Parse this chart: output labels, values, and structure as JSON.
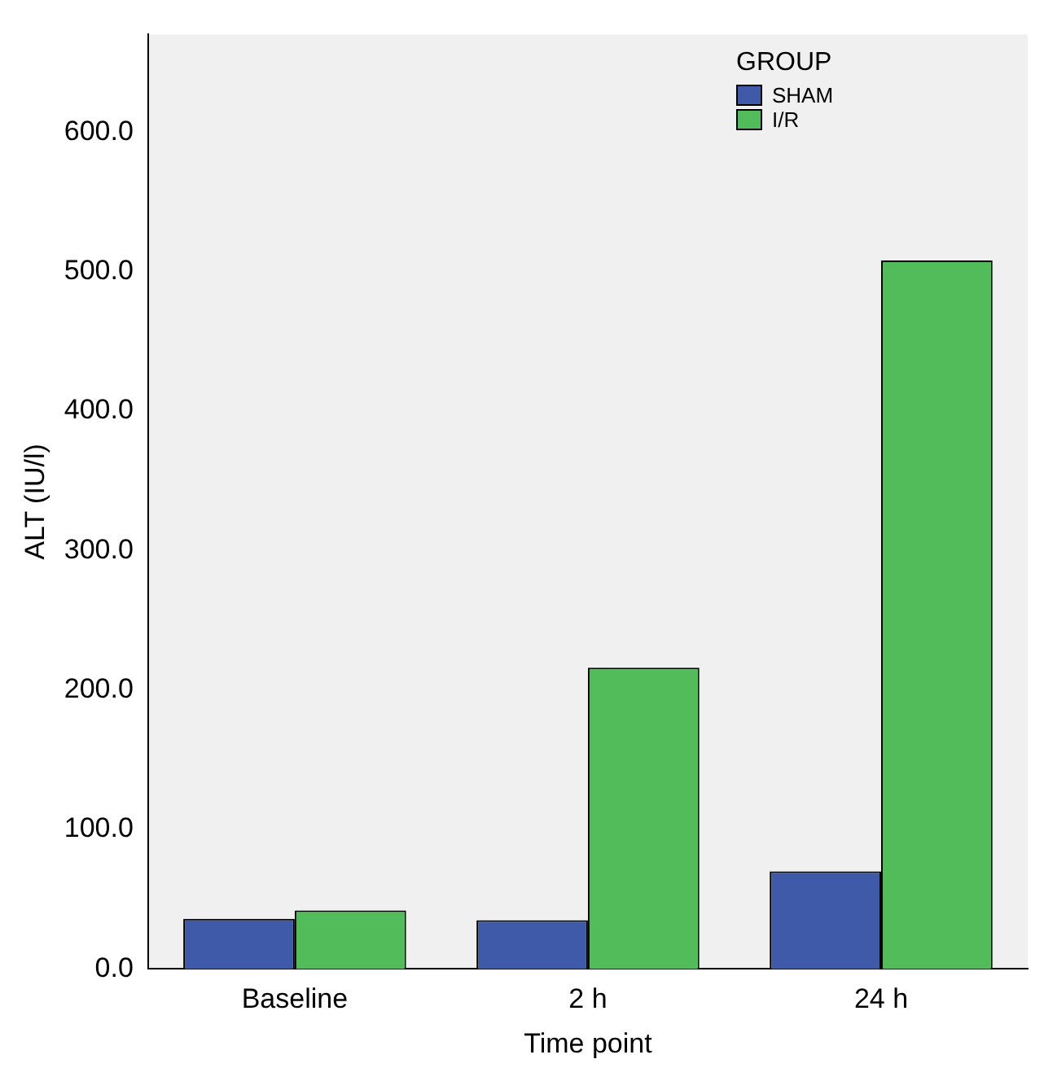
{
  "chart_data": {
    "type": "bar",
    "xlabel": "Time point",
    "ylabel": "ALT (IU/l)",
    "legend_title": "GROUP",
    "legend": "top right",
    "grid": false,
    "categories": [
      "Baseline",
      "2 h",
      "24 h"
    ],
    "series": [
      {
        "name": "SHAM",
        "color": "#3f5aa8",
        "values": [
          36,
          35,
          70
        ]
      },
      {
        "name": "I/R",
        "color": "#52bb5a",
        "values": [
          42,
          216,
          508
        ]
      }
    ],
    "ylim": [
      0,
      670
    ],
    "yticks": [
      {
        "value": 0,
        "label": "0.0"
      },
      {
        "value": 100,
        "label": "100.0"
      },
      {
        "value": 200,
        "label": "200.0"
      },
      {
        "value": 300,
        "label": "300.0"
      },
      {
        "value": 400,
        "label": "400.0"
      },
      {
        "value": 500,
        "label": "500.0"
      },
      {
        "value": 600,
        "label": "600.0"
      }
    ]
  }
}
